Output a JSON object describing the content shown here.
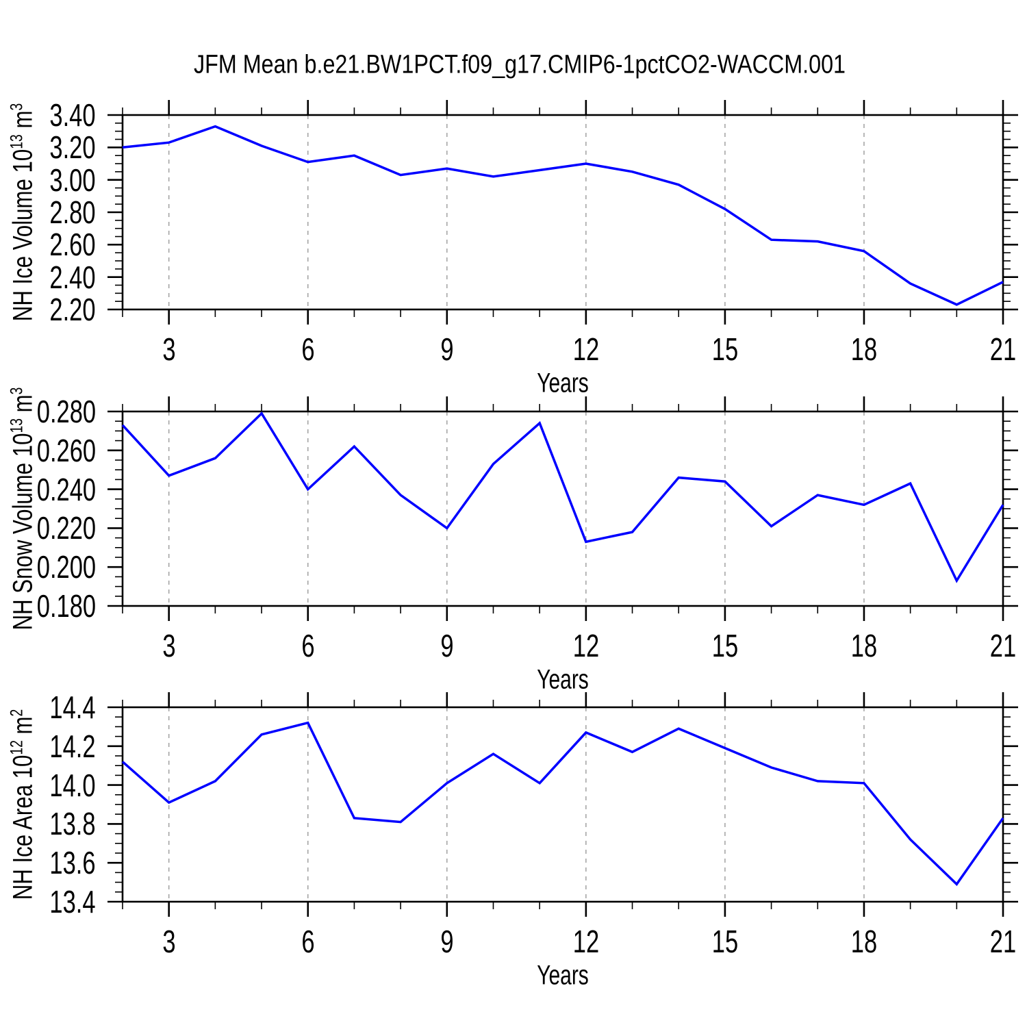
{
  "title": "JFM Mean b.e21.BW1PCT.f09_g17.CMIP6-1pctCO2-WACCM.001",
  "colors": {
    "line": "#0000ff",
    "grid": "#a0a0a0",
    "axis": "#000000",
    "background": "#ffffff",
    "text": "#000000"
  },
  "chart_data": [
    {
      "id": "ice-volume",
      "type": "line",
      "title": "",
      "xlabel": "Years",
      "ylabel": "NH Ice Volume 10^13 m^3",
      "ylabel_parts": [
        {
          "text": "NH Ice Volume 10"
        },
        {
          "text": "13",
          "sup": true
        },
        {
          "text": " m"
        },
        {
          "text": "3",
          "sup": true
        }
      ],
      "x": [
        2,
        3,
        4,
        5,
        6,
        7,
        8,
        9,
        10,
        11,
        12,
        13,
        14,
        15,
        16,
        17,
        18,
        19,
        20,
        21
      ],
      "values": [
        3.2,
        3.23,
        3.33,
        3.21,
        3.11,
        3.15,
        3.03,
        3.07,
        3.02,
        3.06,
        3.1,
        3.05,
        2.97,
        2.82,
        2.63,
        2.62,
        2.56,
        2.36,
        2.23,
        2.37
      ],
      "xlim": [
        2,
        21
      ],
      "ylim": [
        2.2,
        3.4
      ],
      "xtick_values": [
        3,
        6,
        9,
        12,
        15,
        18,
        21
      ],
      "xtick_labels": [
        "3",
        "6",
        "9",
        "12",
        "15",
        "18",
        "21"
      ],
      "xminor_step": 1,
      "ytick_values": [
        2.2,
        2.4,
        2.6,
        2.8,
        3.0,
        3.2,
        3.4
      ],
      "ytick_labels": [
        "2.20",
        "2.40",
        "2.60",
        "2.80",
        "3.00",
        "3.20",
        "3.40"
      ],
      "yminor_step": 0.05,
      "grid_at": [
        3,
        6,
        9,
        12,
        15,
        18
      ],
      "grid_style": "vertical-dashed",
      "legend": "none"
    },
    {
      "id": "snow-volume",
      "type": "line",
      "title": "",
      "xlabel": "Years",
      "ylabel": "NH Snow Volume 10^13 m^3",
      "ylabel_parts": [
        {
          "text": "NH Snow Volume 10"
        },
        {
          "text": "13",
          "sup": true
        },
        {
          "text": " m"
        },
        {
          "text": "3",
          "sup": true
        }
      ],
      "x": [
        2,
        3,
        4,
        5,
        6,
        7,
        8,
        9,
        10,
        11,
        12,
        13,
        14,
        15,
        16,
        17,
        18,
        19,
        20,
        21
      ],
      "values": [
        0.273,
        0.247,
        0.256,
        0.279,
        0.24,
        0.262,
        0.237,
        0.22,
        0.253,
        0.274,
        0.213,
        0.218,
        0.246,
        0.244,
        0.221,
        0.237,
        0.232,
        0.243,
        0.193,
        0.232
      ],
      "xlim": [
        2,
        21
      ],
      "ylim": [
        0.18,
        0.28
      ],
      "xtick_values": [
        3,
        6,
        9,
        12,
        15,
        18,
        21
      ],
      "xtick_labels": [
        "3",
        "6",
        "9",
        "12",
        "15",
        "18",
        "21"
      ],
      "xminor_step": 1,
      "ytick_values": [
        0.18,
        0.2,
        0.22,
        0.24,
        0.26,
        0.28
      ],
      "ytick_labels": [
        "0.180",
        "0.200",
        "0.220",
        "0.240",
        "0.260",
        "0.280"
      ],
      "yminor_step": 0.005,
      "grid_at": [
        3,
        6,
        9,
        12,
        15,
        18
      ],
      "grid_style": "vertical-dashed",
      "legend": "none"
    },
    {
      "id": "ice-area",
      "type": "line",
      "title": "",
      "xlabel": "Years",
      "ylabel": "NH Ice Area 10^12 m^2",
      "ylabel_parts": [
        {
          "text": "NH Ice Area 10"
        },
        {
          "text": "12",
          "sup": true
        },
        {
          "text": " m"
        },
        {
          "text": "2",
          "sup": true
        }
      ],
      "x": [
        2,
        3,
        4,
        5,
        6,
        7,
        8,
        9,
        10,
        11,
        12,
        13,
        14,
        15,
        16,
        17,
        18,
        19,
        20,
        21
      ],
      "values": [
        14.12,
        13.91,
        14.02,
        14.26,
        14.32,
        13.83,
        13.81,
        14.01,
        14.16,
        14.01,
        14.27,
        14.17,
        14.29,
        14.19,
        14.09,
        14.02,
        14.01,
        13.72,
        13.49,
        13.83
      ],
      "xlim": [
        2,
        21
      ],
      "ylim": [
        13.4,
        14.4
      ],
      "xtick_values": [
        3,
        6,
        9,
        12,
        15,
        18,
        21
      ],
      "xtick_labels": [
        "3",
        "6",
        "9",
        "12",
        "15",
        "18",
        "21"
      ],
      "xminor_step": 1,
      "ytick_values": [
        13.4,
        13.6,
        13.8,
        14.0,
        14.2,
        14.4
      ],
      "ytick_labels": [
        "13.4",
        "13.6",
        "13.8",
        "14.0",
        "14.2",
        "14.4"
      ],
      "yminor_step": 0.05,
      "grid_at": [
        3,
        6,
        9,
        12,
        15,
        18
      ],
      "grid_style": "vertical-dashed",
      "legend": "none"
    }
  ]
}
